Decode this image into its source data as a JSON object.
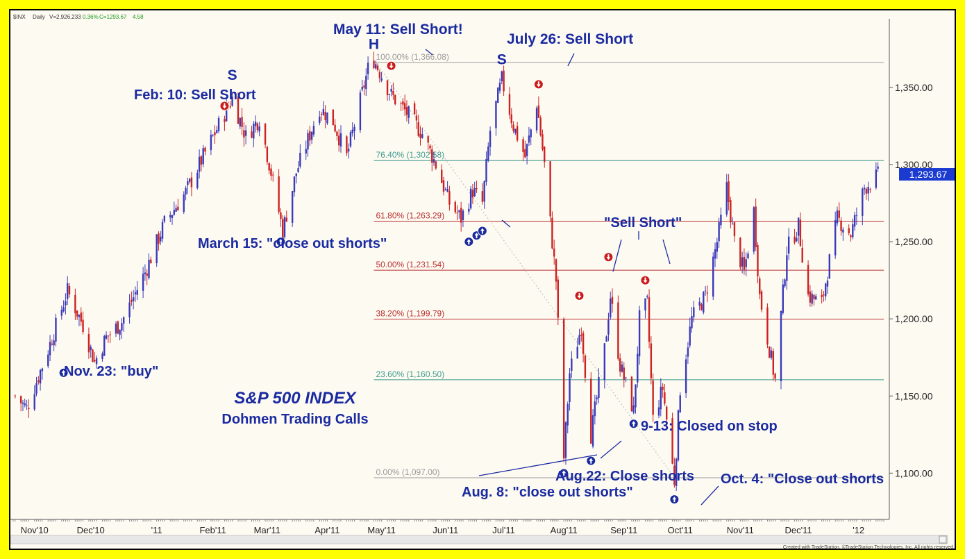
{
  "header": {
    "symbol": "$INX",
    "interval": "Daily",
    "volume": "V=2,926,233",
    "change_pct": "0.36%",
    "close": "C=1293.67",
    "change": "4.58"
  },
  "footer": {
    "credit": "Created with TradeStation. ©TradeStation Technologies, Inc. All rights reserved."
  },
  "colors": {
    "up_candle": "#3a3ab8",
    "down_candle": "#cc2222",
    "fib_green": "#3e9b8c",
    "fib_red": "#b83232",
    "fib_gray": "#9a9a9a",
    "annotation": "#1a2aa0",
    "price_badge": "#1a3ad0",
    "frame": "#ffff00",
    "background": "#fdfaf2"
  },
  "chart_data": {
    "type": "candlestick",
    "title": "S&P 500 INDEX",
    "subtitle": "Dohmen Trading Calls",
    "x_labels": [
      "Nov'10",
      "Dec'10",
      "'11",
      "Feb'11",
      "Mar'11",
      "Apr'11",
      "May'11",
      "Jun'11",
      "Jul'11",
      "Aug'11",
      "Sep'11",
      "Oct'11",
      "Nov'11",
      "Dec'11",
      "'12"
    ],
    "y_ticks": [
      "1,350.00",
      "1,300.00",
      "1,250.00",
      "1,200.00",
      "1,150.00",
      "1,100.00"
    ],
    "y_tick_values": [
      1350,
      1300,
      1250,
      1200,
      1150,
      1100
    ],
    "ylim": [
      1070,
      1390
    ],
    "last_price_label": "1,293.67",
    "last_price": 1293.67,
    "price_path": [
      {
        "date": "2010-10-29",
        "close": 1150
      },
      {
        "date": "2010-11-04",
        "close": 1142
      },
      {
        "date": "2010-11-15",
        "close": 1180
      },
      {
        "date": "2010-11-25",
        "close": 1218
      },
      {
        "date": "2010-12-03",
        "close": 1196
      },
      {
        "date": "2010-12-09",
        "close": 1172
      },
      {
        "date": "2010-12-15",
        "close": 1188
      },
      {
        "date": "2010-12-23",
        "close": 1198
      },
      {
        "date": "2011-01-04",
        "close": 1230
      },
      {
        "date": "2011-01-14",
        "close": 1262
      },
      {
        "date": "2011-01-25",
        "close": 1282
      },
      {
        "date": "2011-02-08",
        "close": 1318
      },
      {
        "date": "2011-02-18",
        "close": 1343
      },
      {
        "date": "2011-02-25",
        "close": 1318
      },
      {
        "date": "2011-03-04",
        "close": 1330
      },
      {
        "date": "2011-03-10",
        "close": 1295
      },
      {
        "date": "2011-03-16",
        "close": 1257
      },
      {
        "date": "2011-03-23",
        "close": 1295
      },
      {
        "date": "2011-04-04",
        "close": 1337
      },
      {
        "date": "2011-04-11",
        "close": 1328
      },
      {
        "date": "2011-04-18",
        "close": 1305
      },
      {
        "date": "2011-04-29",
        "close": 1362
      },
      {
        "date": "2011-05-02",
        "close": 1368
      },
      {
        "date": "2011-05-11",
        "close": 1345
      },
      {
        "date": "2011-05-20",
        "close": 1332
      },
      {
        "date": "2011-05-27",
        "close": 1320
      },
      {
        "date": "2011-06-03",
        "close": 1300
      },
      {
        "date": "2011-06-10",
        "close": 1275
      },
      {
        "date": "2011-06-16",
        "close": 1265
      },
      {
        "date": "2011-06-22",
        "close": 1283
      },
      {
        "date": "2011-06-27",
        "close": 1275
      },
      {
        "date": "2011-07-01",
        "close": 1322
      },
      {
        "date": "2011-07-07",
        "close": 1355
      },
      {
        "date": "2011-07-13",
        "close": 1325
      },
      {
        "date": "2011-07-19",
        "close": 1305
      },
      {
        "date": "2011-07-25",
        "close": 1340
      },
      {
        "date": "2011-07-29",
        "close": 1300
      },
      {
        "date": "2011-08-04",
        "close": 1225
      },
      {
        "date": "2011-08-08",
        "close": 1110
      },
      {
        "date": "2011-08-11",
        "close": 1165
      },
      {
        "date": "2011-08-17",
        "close": 1195
      },
      {
        "date": "2011-08-22",
        "close": 1125
      },
      {
        "date": "2011-08-29",
        "close": 1180
      },
      {
        "date": "2011-09-01",
        "close": 1215
      },
      {
        "date": "2011-09-06",
        "close": 1170
      },
      {
        "date": "2011-09-13",
        "close": 1140
      },
      {
        "date": "2011-09-16",
        "close": 1200
      },
      {
        "date": "2011-09-20",
        "close": 1210
      },
      {
        "date": "2011-09-23",
        "close": 1135
      },
      {
        "date": "2011-09-28",
        "close": 1155
      },
      {
        "date": "2011-10-04",
        "close": 1095
      },
      {
        "date": "2011-10-07",
        "close": 1155
      },
      {
        "date": "2011-10-13",
        "close": 1200
      },
      {
        "date": "2011-10-20",
        "close": 1215
      },
      {
        "date": "2011-10-26",
        "close": 1250
      },
      {
        "date": "2011-10-31",
        "close": 1285
      },
      {
        "date": "2011-11-04",
        "close": 1250
      },
      {
        "date": "2011-11-09",
        "close": 1230
      },
      {
        "date": "2011-11-14",
        "close": 1270
      },
      {
        "date": "2011-11-17",
        "close": 1215
      },
      {
        "date": "2011-11-25",
        "close": 1160
      },
      {
        "date": "2011-12-01",
        "close": 1245
      },
      {
        "date": "2011-12-07",
        "close": 1260
      },
      {
        "date": "2011-12-12",
        "close": 1215
      },
      {
        "date": "2011-12-19",
        "close": 1210
      },
      {
        "date": "2011-12-27",
        "close": 1265
      },
      {
        "date": "2012-01-03",
        "close": 1255
      },
      {
        "date": "2012-01-10",
        "close": 1285
      },
      {
        "date": "2012-01-17",
        "close": 1293
      }
    ],
    "fibonacci_levels": [
      {
        "label": "100.00% (1,366.08)",
        "value": 1366.08
      },
      {
        "label": "76.40% (1,302.58)",
        "value": 1302.58
      },
      {
        "label": "61.80% (1,263.29)",
        "value": 1263.29
      },
      {
        "label": "50.00% (1,231.54)",
        "value": 1231.54
      },
      {
        "label": "38.20% (1,199.79)",
        "value": 1199.79
      },
      {
        "label": "23.60% (1,160.50)",
        "value": 1160.5
      },
      {
        "label": "0.00% (1,097.00)",
        "value": 1097.0
      }
    ],
    "pattern_labels": [
      {
        "text": "S",
        "date": "2011-02-18",
        "price": 1355
      },
      {
        "text": "H",
        "date": "2011-05-02",
        "price": 1375
      },
      {
        "text": "S",
        "date": "2011-07-07",
        "price": 1365
      }
    ],
    "signals": [
      {
        "type": "buy",
        "date": "2010-11-23",
        "price": 1165
      },
      {
        "type": "sell",
        "date": "2011-02-14",
        "price": 1338
      },
      {
        "type": "buy",
        "date": "2011-03-15",
        "price": 1250
      },
      {
        "type": "sell",
        "date": "2011-05-11",
        "price": 1364
      },
      {
        "type": "buy",
        "date": "2011-06-20",
        "price": 1250
      },
      {
        "type": "buy",
        "date": "2011-06-24",
        "price": 1254
      },
      {
        "type": "buy",
        "date": "2011-06-27",
        "price": 1257
      },
      {
        "type": "sell",
        "date": "2011-07-26",
        "price": 1352
      },
      {
        "type": "buy",
        "date": "2011-08-08",
        "price": 1100
      },
      {
        "type": "sell",
        "date": "2011-08-16",
        "price": 1215
      },
      {
        "type": "buy",
        "date": "2011-08-22",
        "price": 1108
      },
      {
        "type": "sell",
        "date": "2011-08-31",
        "price": 1240
      },
      {
        "type": "buy",
        "date": "2011-09-13",
        "price": 1132
      },
      {
        "type": "sell",
        "date": "2011-09-19",
        "price": 1225
      },
      {
        "type": "buy",
        "date": "2011-10-04",
        "price": 1083
      }
    ],
    "annotations": [
      {
        "text": "May 11: Sell Short!"
      },
      {
        "text": "July 26: Sell Short"
      },
      {
        "text": "Feb: 10: Sell Short"
      },
      {
        "text": "March 15: \"close out shorts\""
      },
      {
        "text": "\"Sell Short\""
      },
      {
        "text": "Nov. 23: \"buy\""
      },
      {
        "text": "9-13: Closed on stop"
      },
      {
        "text": "Aug.22: Close shorts"
      },
      {
        "text": "Oct. 4: \"Close out shorts"
      },
      {
        "text": "Aug. 8: \"close out shorts\""
      }
    ]
  }
}
